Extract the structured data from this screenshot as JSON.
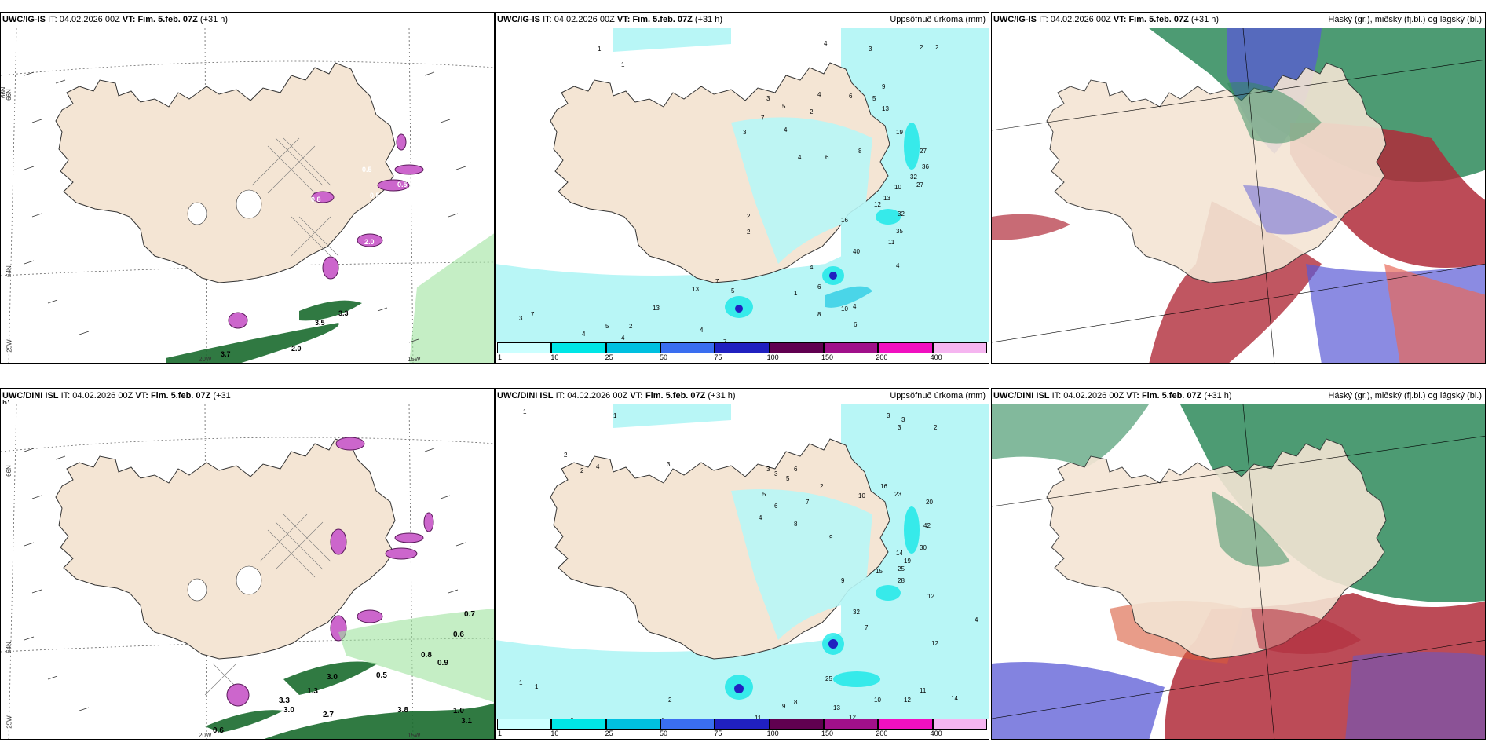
{
  "colors": {
    "land": "#f4e5d4",
    "sea_precip_light": "#b8f6f6",
    "cyan": "#00e6e6",
    "accent_purple": "#cc66cc",
    "dark_green": "#1a6b2e",
    "red_cloud": "#b02c3a",
    "blue_cloud": "#5a5ad6",
    "green_cloud": "#2e8a5a"
  },
  "panels": [
    {
      "id": "wind",
      "model": "UWC/IG-IS",
      "it_label": "IT:",
      "it_value": "04.02.2026 00Z",
      "vt_label": "VT: Fim. 5.feb. 07Z",
      "lead": "(+31 h)",
      "right_title": "",
      "lat_labels": [
        "66N",
        "64N",
        "25W"
      ],
      "lon_labels": [
        "20W",
        "15W"
      ],
      "value_labels": [
        "0.8",
        "0.5",
        "2.0",
        "0.5",
        "0.5",
        "3.7",
        "2.0",
        "3.3",
        "3.5"
      ]
    },
    {
      "id": "precip",
      "model": "UWC/IG-IS",
      "it_label": "IT:",
      "it_value": "04.02.2026 00Z",
      "vt_label": "VT: Fim. 5.feb. 07Z",
      "lead": "(+31 h)",
      "right_title": "Uppsöfnuð úrkoma (mm)",
      "numbers": [
        "1",
        "1",
        "4",
        "3",
        "2",
        "2",
        "3",
        "5",
        "4",
        "7",
        "3",
        "4",
        "2",
        "6",
        "8",
        "5",
        "9",
        "13",
        "4",
        "6",
        "19",
        "27",
        "36",
        "32",
        "27",
        "10",
        "13",
        "12",
        "32",
        "35",
        "11",
        "16",
        "40",
        "4",
        "4",
        "2",
        "6",
        "1",
        "10",
        "6",
        "4",
        "8",
        "7",
        "3",
        "4",
        "5",
        "4",
        "2",
        "13",
        "13",
        "7",
        "5",
        "4",
        "7",
        "6",
        "5",
        "2"
      ],
      "colorbar": {
        "ticks": [
          "1",
          "10",
          "25",
          "50",
          "75",
          "100",
          "150",
          "200",
          "400"
        ],
        "colors": [
          "#ccffff",
          "#00e6e6",
          "#00c0e0",
          "#3a6ef0",
          "#2020c0",
          "#600050",
          "#a0108a",
          "#f010c0",
          "#f5b5f0"
        ]
      }
    },
    {
      "id": "cloud",
      "model": "UWC/IG-IS",
      "it_label": "IT:",
      "it_value": "04.02.2026 00Z",
      "vt_label": "VT: Fim. 5.feb. 07Z",
      "lead": "(+31 h)",
      "right_title": "Háský (gr.), miðský (fj.bl.) og lágský (bl.)"
    },
    {
      "id": "wind2",
      "model": "UWC/DINI ISL",
      "it_label": "IT:",
      "it_value": "04.02.2026 00Z",
      "vt_label": "VT: Fim. 5.feb. 07Z",
      "lead": "(+31",
      "lead_wrap": "h)",
      "right_title": "",
      "lat_labels": [
        "66N",
        "64N",
        "25W"
      ],
      "lon_labels": [
        "20W",
        "15W"
      ],
      "value_labels": [
        "0.7",
        "0.6",
        "0.8",
        "0.9",
        "0.5",
        "1.3",
        "3.0",
        "2.7",
        "1.0",
        "3.1",
        "0.6",
        "3.3",
        "3.0",
        "3.8"
      ]
    },
    {
      "id": "precip2",
      "model": "UWC/DINI ISL",
      "it_label": "IT:",
      "it_value": "04.02.2026 00Z",
      "vt_label": "VT: Fim. 5.feb. 07Z",
      "lead": "(+31 h)",
      "right_title": "Uppsöfnuð úrkoma (mm)",
      "numbers": [
        "1",
        "1",
        "3",
        "3",
        "3",
        "2",
        "2",
        "2",
        "3",
        "4",
        "3",
        "3",
        "5",
        "6",
        "7",
        "2",
        "5",
        "6",
        "4",
        "8",
        "9",
        "10",
        "16",
        "23",
        "20",
        "42",
        "30",
        "14",
        "19",
        "25",
        "28",
        "15",
        "12",
        "32",
        "9",
        "4",
        "7",
        "12",
        "11",
        "14",
        "12",
        "10",
        "13",
        "12",
        "25",
        "8",
        "11",
        "9",
        "6",
        "4",
        "2",
        "1",
        "1"
      ],
      "colorbar": {
        "ticks": [
          "1",
          "10",
          "25",
          "50",
          "75",
          "100",
          "150",
          "200",
          "400"
        ],
        "colors": [
          "#ccffff",
          "#00e6e6",
          "#00c0e0",
          "#3a6ef0",
          "#2020c0",
          "#600050",
          "#a0108a",
          "#f010c0",
          "#f5b5f0"
        ]
      }
    },
    {
      "id": "cloud2",
      "model": "UWC/DINI ISL",
      "it_label": "IT:",
      "it_value": "04.02.2026 00Z",
      "vt_label": "VT: Fim. 5.feb. 07Z",
      "lead": "(+31 h)",
      "right_title": "Háský (gr.), miðský (fj.bl.) og lágský (bl.)"
    }
  ]
}
